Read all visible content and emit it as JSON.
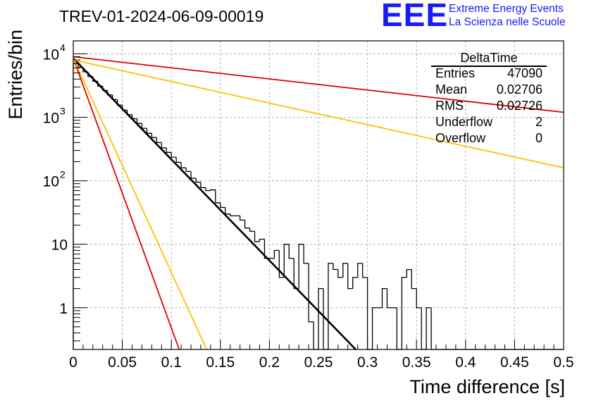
{
  "header": {
    "title": "TREV-01-2024-06-09-00019",
    "logo": "EEE",
    "logo_line1": "Extreme Energy Events",
    "logo_line2": "La Scienza nelle Scuole"
  },
  "stats": {
    "title": "DeltaTime",
    "rows": [
      {
        "label": "Entries",
        "value": "47090"
      },
      {
        "label": "Mean",
        "value": "0.02706"
      },
      {
        "label": "RMS",
        "value": "0.02726"
      },
      {
        "label": "Underflow",
        "value": "2"
      },
      {
        "label": "Overflow",
        "value": "0"
      }
    ]
  },
  "colors": {
    "histogram": "#000000",
    "fit": "#000000",
    "red": "#e00000",
    "orange": "#ffc000",
    "grid": "#b0b0b0",
    "logo": "#1a1aff"
  },
  "chart_data": {
    "type": "line",
    "title": "TREV-01-2024-06-09-00019",
    "xlabel": "Time difference [s]",
    "ylabel": "Entries/bin",
    "xlim": [
      0,
      0.5
    ],
    "ylim": [
      0.22,
      16000
    ],
    "yscale": "log",
    "grid": true,
    "xticks": [
      "0",
      "0.05",
      "0.1",
      "0.15",
      "0.2",
      "0.25",
      "0.3",
      "0.35",
      "0.4",
      "0.45",
      "0.5"
    ],
    "yticks": [
      {
        "value": 1,
        "label": "1"
      },
      {
        "value": 10,
        "label": "10"
      },
      {
        "value": 100,
        "label": "10",
        "exp": "2"
      },
      {
        "value": 1000,
        "label": "10",
        "exp": "3"
      },
      {
        "value": 10000,
        "label": "10",
        "exp": "4"
      }
    ],
    "histogram": {
      "bin_width": 0.005,
      "bin_start": 0,
      "values": [
        7000,
        6100,
        5200,
        4400,
        3700,
        3100,
        2650,
        2250,
        1900,
        1550,
        1300,
        1100,
        950,
        800,
        670,
        560,
        480,
        400,
        330,
        280,
        235,
        195,
        160,
        140,
        110,
        95,
        78,
        70,
        72,
        45,
        38,
        30,
        28,
        28,
        24,
        18,
        16,
        11,
        12,
        6,
        6,
        8,
        3,
        10,
        6,
        2,
        10,
        5,
        0.6,
        0.2,
        2,
        0,
        5,
        4,
        3,
        5,
        2,
        3,
        5,
        3,
        0,
        1,
        1,
        2,
        1,
        1,
        0,
        3,
        4,
        2,
        1,
        0,
        1,
        0,
        0,
        0,
        0,
        0,
        0,
        0,
        0,
        0,
        0,
        0,
        0,
        0,
        0,
        0,
        0,
        0,
        0,
        0,
        0,
        0,
        0,
        0,
        0,
        0,
        0,
        0
      ]
    },
    "series": [
      {
        "color": "#000000",
        "x": [
          0,
          0.288
        ],
        "y": [
          8500,
          0.22
        ]
      },
      {
        "color": "#e00000",
        "x": [
          0,
          0.5
        ],
        "y": [
          9000,
          1200
        ]
      },
      {
        "color": "#ffc000",
        "x": [
          0,
          0.5
        ],
        "y": [
          8000,
          160
        ]
      },
      {
        "color": "#e00000",
        "x": [
          0,
          0.108
        ],
        "y": [
          8500,
          0.22
        ]
      },
      {
        "color": "#ffc000",
        "x": [
          0,
          0.136
        ],
        "y": [
          8500,
          0.22
        ]
      }
    ]
  }
}
